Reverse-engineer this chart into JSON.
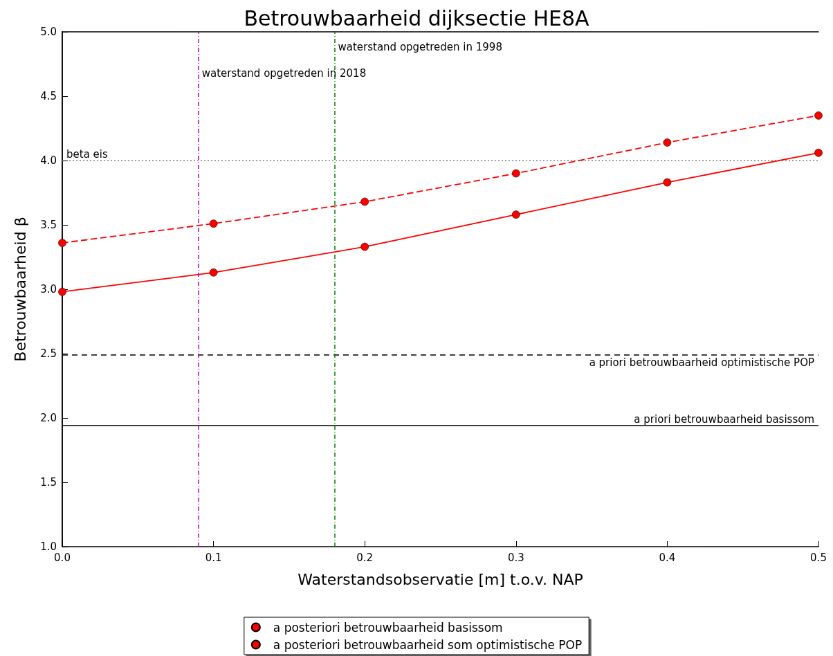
{
  "chart_data": {
    "type": "line",
    "title": "Betrouwbaarheid dijksectie HE8A",
    "xlabel": "Waterstandsobservatie [m] t.o.v. NAP",
    "ylabel": "Betrouwbaarheid β",
    "x": [
      0.0,
      0.1,
      0.2,
      0.3,
      0.4,
      0.5
    ],
    "series": [
      {
        "name": "a posteriori betrouwbaarheid basissom",
        "color": "#ff0000",
        "line_style": "solid",
        "values": [
          2.98,
          3.13,
          3.33,
          3.58,
          3.83,
          4.06
        ]
      },
      {
        "name": "a posteriori betrouwbaarheid som optimistische POP",
        "color": "#ff0000",
        "line_style": "dashed",
        "values": [
          3.36,
          3.51,
          3.68,
          3.9,
          4.14,
          4.35
        ]
      }
    ],
    "marker": "circle",
    "xlim": [
      0.0,
      0.5
    ],
    "xticks": [
      {
        "value": 0,
        "label": "0.0"
      },
      {
        "value": 0.1,
        "label": "0.1"
      },
      {
        "value": 0.2,
        "label": "0.2"
      },
      {
        "value": 0.3,
        "label": "0.3"
      },
      {
        "value": 0.4,
        "label": "0.4"
      },
      {
        "value": 0.5,
        "label": "0.5"
      }
    ],
    "ylim": [
      1.0,
      5.0
    ],
    "yticks": [
      {
        "value": 1,
        "label": "1.0"
      },
      {
        "value": 1.5,
        "label": "1.5"
      },
      {
        "value": 2,
        "label": "2.0"
      },
      {
        "value": 2.5,
        "label": "2.5"
      },
      {
        "value": 3,
        "label": "3.0"
      },
      {
        "value": 3.5,
        "label": "3.5"
      },
      {
        "value": 4,
        "label": "4.0"
      },
      {
        "value": 4.5,
        "label": "4.5"
      },
      {
        "value": 5,
        "label": "5.0"
      }
    ],
    "ref_lines": [
      {
        "axis": "y",
        "value": 4.0,
        "label": "beta eis",
        "color": "#808080",
        "line_style": "dotted"
      },
      {
        "axis": "y",
        "value": 2.49,
        "label": "a priori betrouwbaarheid optimistische POP",
        "color": "#000000",
        "line_style": "dashed"
      },
      {
        "axis": "y",
        "value": 1.94,
        "label": "a priori betrouwbaarheid basissom",
        "color": "#000000",
        "line_style": "solid"
      },
      {
        "axis": "x",
        "value": 0.09,
        "label": "waterstand opgetreden in 2018",
        "color": "#bf00bf",
        "line_style": "dashdot"
      },
      {
        "axis": "x",
        "value": 0.18,
        "label": "waterstand opgetreden in 1998",
        "color": "#008000",
        "line_style": "dashdot"
      }
    ],
    "grid": false,
    "legend": "bottom"
  }
}
